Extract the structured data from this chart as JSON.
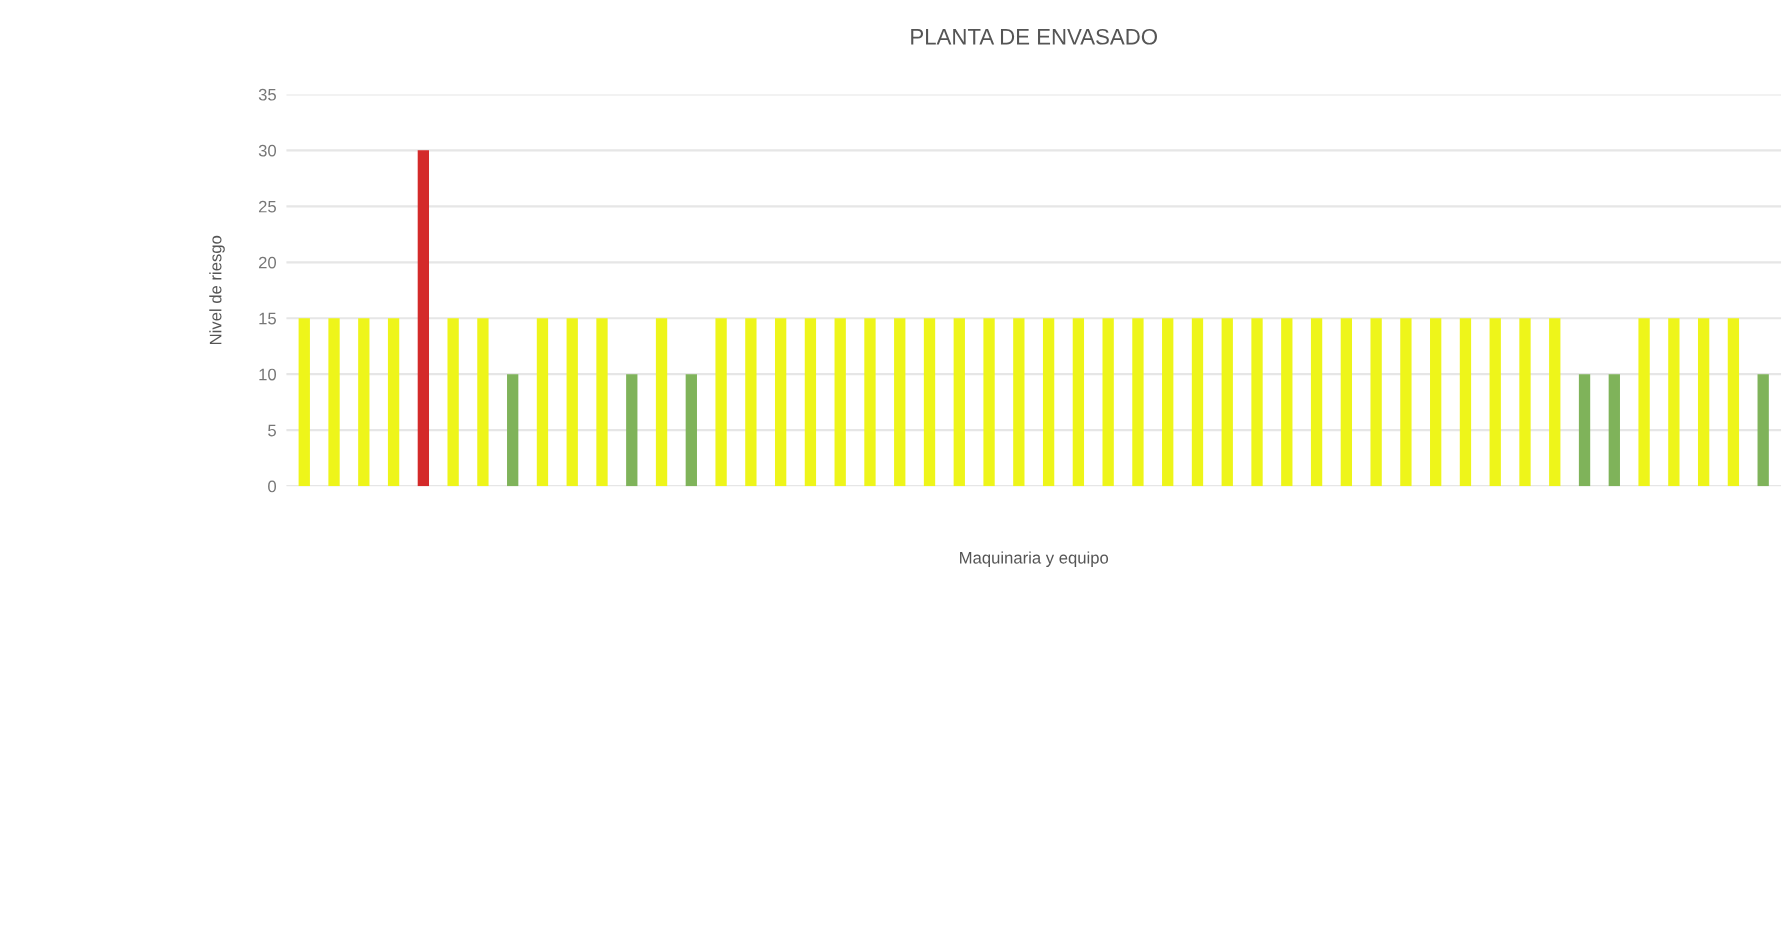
{
  "chart_data": {
    "type": "bar",
    "title": "PLANTA DE ENVASADO",
    "xlabel": "Maquinaria y equipo",
    "ylabel": "Nivel de riesgo",
    "categories": [
      null,
      null,
      null,
      null,
      null,
      null,
      null,
      null,
      null,
      null,
      null,
      null,
      null,
      null,
      null,
      null,
      null,
      null,
      null,
      null,
      null,
      null,
      null,
      null,
      null,
      null,
      null,
      null,
      null,
      null,
      null,
      null,
      null,
      null,
      null,
      null,
      null,
      null,
      null,
      null,
      null,
      null,
      null,
      null,
      null,
      null,
      null,
      null,
      null,
      null
    ],
    "values": [
      15,
      15,
      15,
      15,
      30,
      15,
      15,
      10,
      15,
      15,
      15,
      10,
      15,
      10,
      15,
      15,
      15,
      15,
      15,
      15,
      15,
      15,
      15,
      15,
      15,
      15,
      15,
      15,
      15,
      15,
      15,
      15,
      15,
      15,
      15,
      15,
      15,
      15,
      15,
      15,
      15,
      15,
      15,
      10,
      10,
      15,
      15,
      15,
      15,
      10
    ],
    "colors": [
      "#eef51a",
      "#eef51a",
      "#eef51a",
      "#eef51a",
      "#d42a2a",
      "#eef51a",
      "#eef51a",
      "#7fb35a",
      "#eef51a",
      "#eef51a",
      "#eef51a",
      "#7fb35a",
      "#eef51a",
      "#7fb35a",
      "#eef51a",
      "#eef51a",
      "#eef51a",
      "#eef51a",
      "#eef51a",
      "#eef51a",
      "#eef51a",
      "#eef51a",
      "#eef51a",
      "#eef51a",
      "#eef51a",
      "#eef51a",
      "#eef51a",
      "#eef51a",
      "#eef51a",
      "#eef51a",
      "#eef51a",
      "#eef51a",
      "#eef51a",
      "#eef51a",
      "#eef51a",
      "#eef51a",
      "#eef51a",
      "#eef51a",
      "#eef51a",
      "#eef51a",
      "#eef51a",
      "#eef51a",
      "#eef51a",
      "#7fb35a",
      "#7fb35a",
      "#eef51a",
      "#eef51a",
      "#eef51a",
      "#eef51a",
      "#7fb35a"
    ],
    "ylim": [
      0,
      35
    ],
    "yticks": [
      0,
      5,
      10,
      15,
      20,
      25,
      30,
      35
    ],
    "grid": "y"
  }
}
